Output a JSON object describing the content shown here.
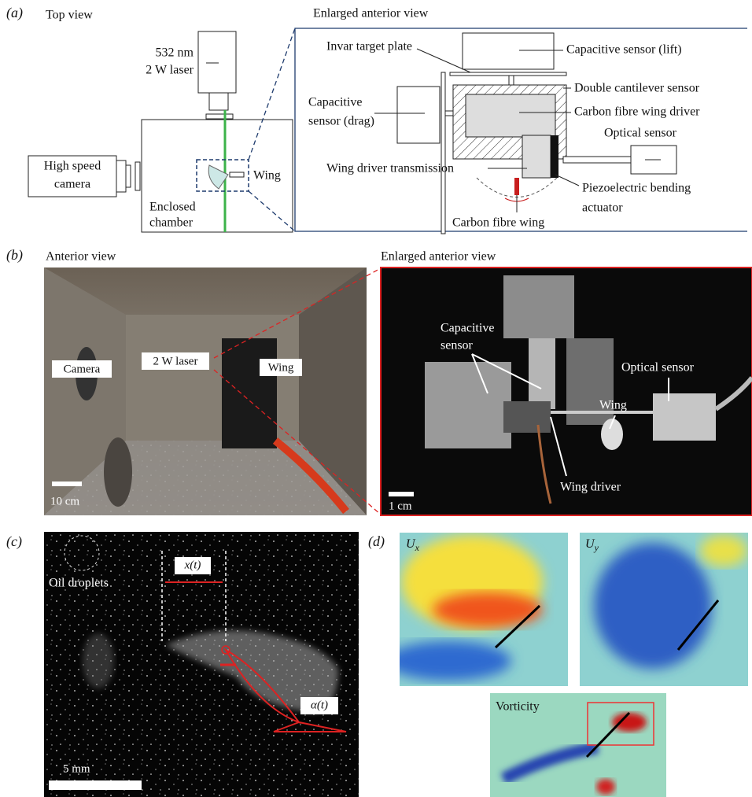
{
  "panel_a": {
    "label": "(a)",
    "top_view": "Top view",
    "laser": [
      "532 nm",
      "2 W laser"
    ],
    "camera": [
      "High speed",
      "camera"
    ],
    "wing": "Wing",
    "chamber": [
      "Enclosed",
      "chamber"
    ],
    "enlarged_title": "Enlarged anterior view",
    "components": {
      "invar": "Invar target plate",
      "lift_sensor": "Capacitive sensor (lift)",
      "cantilever": "Double cantilever sensor",
      "drag_sensor": [
        "Capacitive",
        "sensor (drag)"
      ],
      "wing_driver": "Carbon fibre wing driver",
      "optical": "Optical sensor",
      "transmission": "Wing driver transmission",
      "actuator": [
        "Piezoelectric bending",
        "actuator"
      ],
      "carbon_wing": "Carbon fibre wing"
    }
  },
  "panel_b": {
    "label": "(b)",
    "title": "Anterior view",
    "enlarged_title": "Enlarged anterior view",
    "camera": "Camera",
    "laser": "2 W laser",
    "wing": "Wing",
    "scale": "10 cm",
    "capacitive": [
      "Capacitive",
      "sensor"
    ],
    "optical": "Optical sensor",
    "wing_right": "Wing",
    "wing_driver": "Wing driver",
    "scale_right": "1 cm"
  },
  "panel_c": {
    "label": "(c)",
    "droplets": "Oil droplets",
    "x": "x(t)",
    "alpha": "α(t)",
    "scale": "5 mm"
  },
  "panel_d": {
    "label": "(d)",
    "ux": {
      "symbol": "U",
      "subscript": "x"
    },
    "uy": {
      "symbol": "U",
      "subscript": "y"
    },
    "vorticity": "Vorticity"
  }
}
